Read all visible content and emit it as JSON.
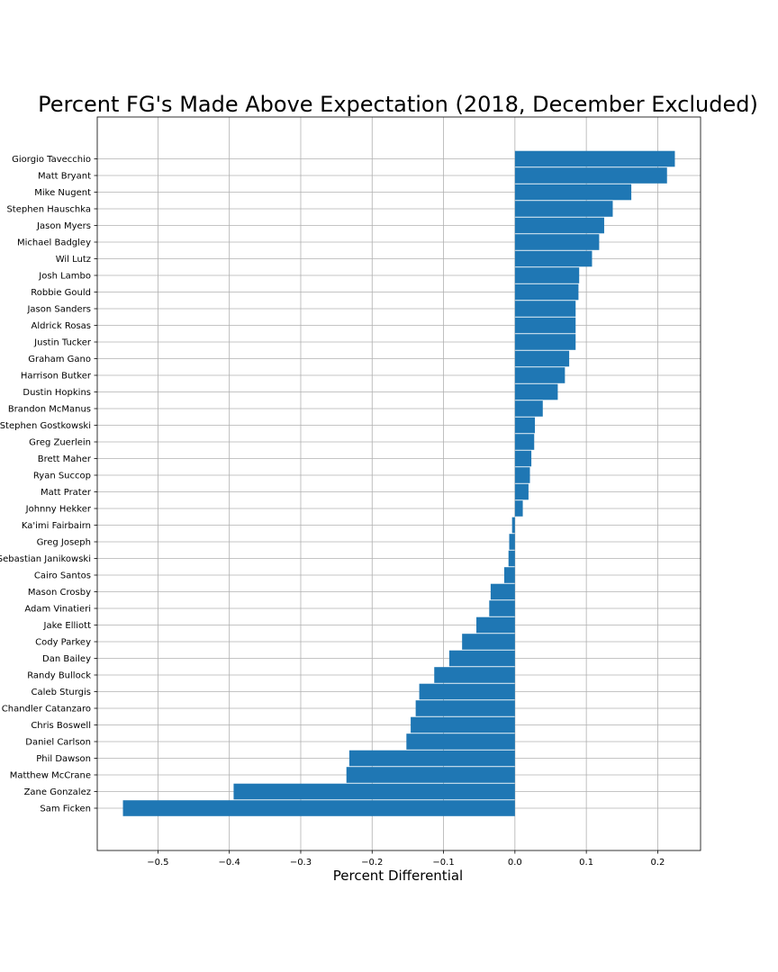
{
  "chart_data": {
    "type": "bar",
    "orientation": "horizontal",
    "title": "Percent FG's Made Above Expectation (2018, December Excluded)",
    "xlabel": "Percent Differential",
    "ylabel": "",
    "xlim": [
      -0.585,
      0.26
    ],
    "xticks": [
      -0.5,
      -0.4,
      -0.3,
      -0.2,
      -0.1,
      0.0,
      0.1,
      0.2
    ],
    "xtick_labels": [
      "−0.5",
      "−0.4",
      "−0.3",
      "−0.2",
      "−0.1",
      "0.0",
      "0.1",
      "0.2"
    ],
    "grid": true,
    "bar_color": "#1f77b4",
    "categories": [
      "Giorgio Tavecchio",
      "Matt Bryant",
      "Mike Nugent",
      "Stephen Hauschka",
      "Jason Myers",
      "Michael Badgley",
      "Wil Lutz",
      "Josh Lambo",
      "Robbie Gould",
      "Jason Sanders",
      "Aldrick Rosas",
      "Justin Tucker",
      "Graham Gano",
      "Harrison Butker",
      "Dustin Hopkins",
      "Brandon McManus",
      "Stephen Gostkowski",
      "Greg Zuerlein",
      "Brett Maher",
      "Ryan Succop",
      "Matt Prater",
      "Johnny Hekker",
      "Ka'imi Fairbairn",
      "Greg Joseph",
      "Sebastian Janikowski",
      "Cairo Santos",
      "Mason Crosby",
      "Adam Vinatieri",
      "Jake Elliott",
      "Cody Parkey",
      "Dan Bailey",
      "Randy Bullock",
      "Caleb Sturgis",
      "Chandler Catanzaro",
      "Chris Boswell",
      "Daniel Carlson",
      "Phil Dawson",
      "Matthew McCrane",
      "Zane Gonzalez",
      "Sam Ficken"
    ],
    "values": [
      0.224,
      0.213,
      0.163,
      0.137,
      0.125,
      0.118,
      0.108,
      0.09,
      0.089,
      0.085,
      0.085,
      0.085,
      0.076,
      0.07,
      0.06,
      0.039,
      0.028,
      0.027,
      0.023,
      0.021,
      0.019,
      0.011,
      -0.004,
      -0.008,
      -0.009,
      -0.015,
      -0.034,
      -0.036,
      -0.054,
      -0.074,
      -0.092,
      -0.113,
      -0.134,
      -0.139,
      -0.146,
      -0.152,
      -0.232,
      -0.236,
      -0.394,
      -0.549
    ]
  }
}
